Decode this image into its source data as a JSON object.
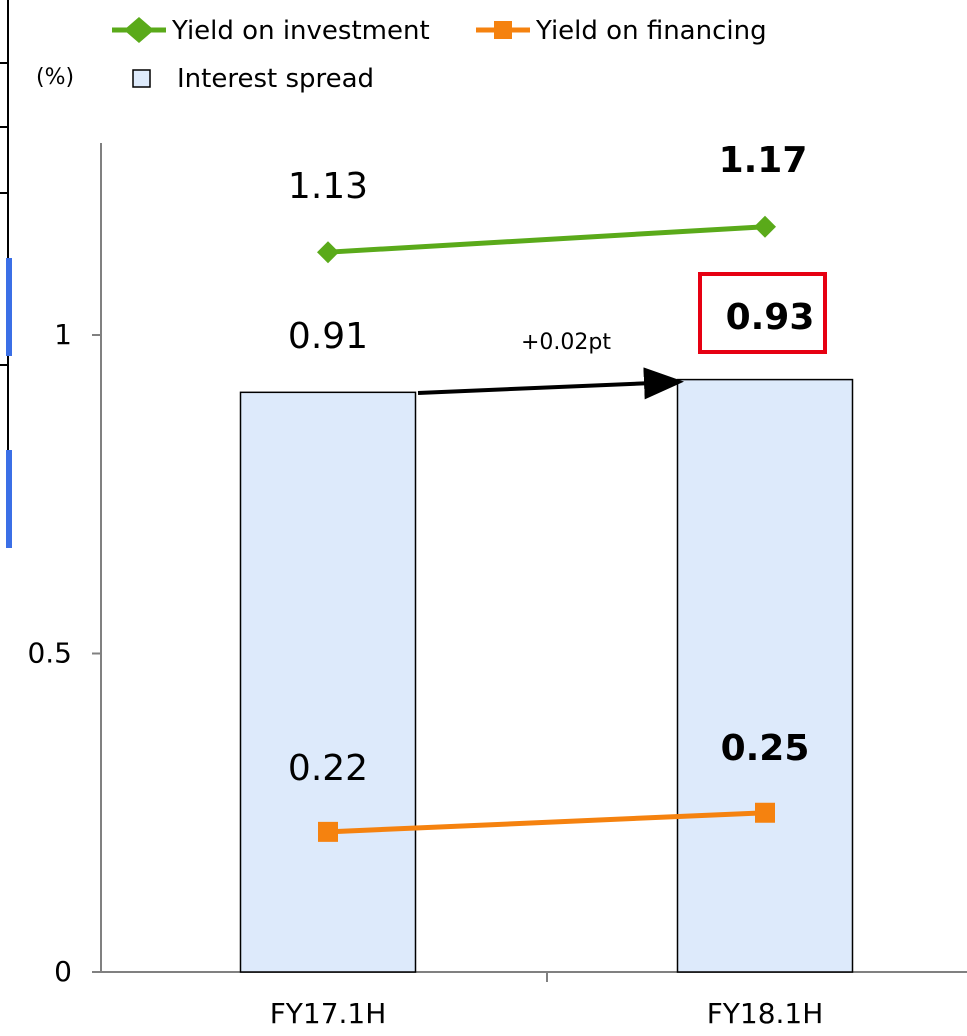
{
  "chart_data": {
    "type": "bar",
    "categories": [
      "FY17.1H",
      "FY18.1H"
    ],
    "series": [
      {
        "name": "Interest spread",
        "kind": "bar",
        "values": [
          0.91,
          0.93
        ],
        "labels": [
          "0.91",
          "0.93"
        ],
        "color": "#ddeafb",
        "stroke": "#000000"
      },
      {
        "name": "Yield on investment",
        "kind": "line",
        "marker": "diamond",
        "values": [
          1.13,
          1.17
        ],
        "labels": [
          "1.13",
          "1.17"
        ],
        "color": "#5aaa1a"
      },
      {
        "name": "Yield on financing",
        "kind": "line",
        "marker": "square",
        "values": [
          0.22,
          0.25
        ],
        "labels": [
          "0.22",
          "0.25"
        ],
        "color": "#f5820f"
      }
    ],
    "ylabel": "(%)",
    "ylim": [
      0,
      1.2
    ],
    "yticks": [
      {
        "value": 0,
        "label": "0"
      },
      {
        "value": 0.5,
        "label": "0.5"
      },
      {
        "value": 1,
        "label": "1"
      }
    ],
    "grid": false,
    "legend_position": "top",
    "annotations": {
      "spread_change": "+0.02pt",
      "highlight_color": "#e60012"
    }
  }
}
